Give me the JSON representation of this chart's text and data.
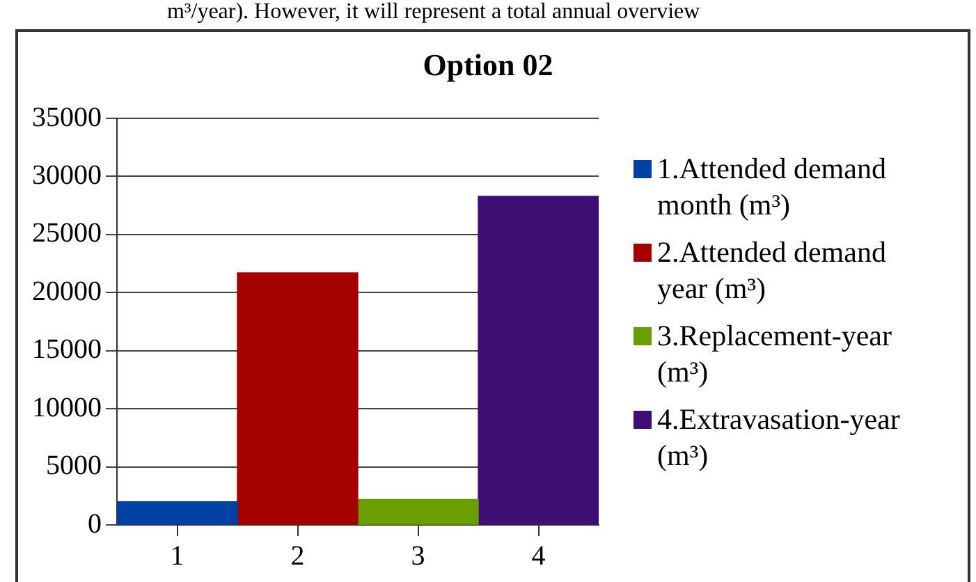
{
  "chart_data": {
    "type": "bar",
    "title": "Option 02",
    "annotations": [
      "m³/year). However, it will represent a total annual overview"
    ],
    "categories": [
      "1",
      "2",
      "3",
      "4"
    ],
    "series": [
      {
        "name": "1.Attended demand month (m³)",
        "color": "#0041a3",
        "values": [
          2000,
          null,
          null,
          null
        ]
      },
      {
        "name": "2.Attended demand year (m³)",
        "color": "#a50000",
        "values": [
          null,
          21700,
          null,
          null
        ]
      },
      {
        "name": "3.Replacement-year (m³)",
        "color": "#6a9e00",
        "values": [
          null,
          null,
          2200,
          null
        ]
      },
      {
        "name": "4.Extravasation-year (m³)",
        "color": "#3f0e74",
        "values": [
          null,
          null,
          null,
          28300
        ]
      }
    ],
    "ylim": [
      0,
      35000
    ],
    "yticks": [
      0,
      5000,
      10000,
      15000,
      20000,
      25000,
      30000,
      35000
    ],
    "grid": "y",
    "legend": "right"
  }
}
